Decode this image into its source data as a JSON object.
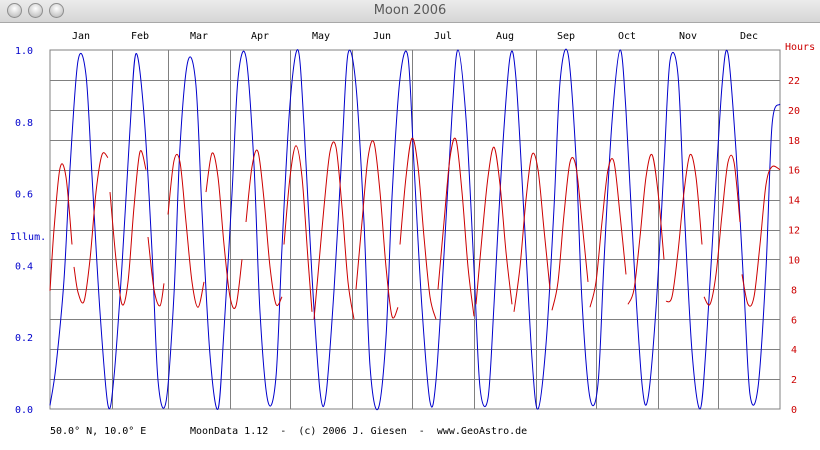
{
  "window": {
    "title": "Moon 2006"
  },
  "footer": {
    "location": "50.0° N, 10.0° E",
    "credit": "MoonData 1.12  -  (c) 2006 J. Giesen  -  www.GeoAstro.de"
  },
  "colors": {
    "grid": "#808080",
    "illumination": "#0000cc",
    "hours": "#cc0000"
  },
  "chart_data": {
    "type": "line",
    "title": "",
    "x_axis": {
      "categories": [
        "Jan",
        "Feb",
        "Mar",
        "Apr",
        "May",
        "Jun",
        "Jul",
        "Aug",
        "Sep",
        "Oct",
        "Nov",
        "Dec"
      ],
      "position": "top",
      "range_days": [
        0,
        365
      ]
    },
    "y_axis_left": {
      "label": "Illum.",
      "range": [
        0,
        1
      ],
      "ticks": [
        "0.0",
        "0.2",
        "0.4",
        "0.6",
        "0.8",
        "1.0"
      ]
    },
    "y_axis_right": {
      "label": "Hours",
      "range": [
        0,
        24
      ],
      "ticks": [
        "0",
        "2",
        "4",
        "6",
        "8",
        "10",
        "12",
        "14",
        "16",
        "18",
        "20",
        "22"
      ]
    },
    "grid": true,
    "series": [
      {
        "axis": "left",
        "x": [
          0,
          3,
          7,
          10,
          14,
          18,
          21,
          25,
          29,
          32,
          36,
          40,
          43,
          47,
          51,
          54,
          58,
          62,
          65,
          69,
          73,
          76,
          80,
          84,
          87,
          91,
          94,
          98,
          102,
          105,
          109,
          113,
          116,
          120,
          124,
          127,
          131,
          135,
          138,
          142,
          146,
          149,
          153,
          157,
          160,
          164,
          168,
          171,
          175,
          179,
          182,
          186,
          190,
          193,
          197,
          201,
          204,
          208,
          212,
          215,
          219,
          222,
          226,
          230,
          233,
          237,
          241,
          244,
          248,
          252,
          255,
          259,
          263,
          266,
          270,
          274,
          277,
          281,
          285,
          288,
          292,
          296,
          299,
          303,
          307,
          310,
          314,
          317,
          321,
          325,
          328,
          332,
          336,
          339,
          343,
          347,
          350,
          354,
          358,
          361,
          365
        ],
        "y": [
          0.01,
          0.12,
          0.36,
          0.67,
          0.97,
          0.93,
          0.65,
          0.27,
          0.01,
          0.09,
          0.4,
          0.78,
          0.99,
          0.82,
          0.44,
          0.08,
          0.02,
          0.32,
          0.73,
          0.97,
          0.9,
          0.55,
          0.15,
          0.0,
          0.22,
          0.6,
          0.92,
          0.98,
          0.68,
          0.27,
          0.02,
          0.09,
          0.45,
          0.85,
          1.0,
          0.79,
          0.37,
          0.05,
          0.04,
          0.33,
          0.72,
          0.99,
          0.9,
          0.52,
          0.12,
          0.0,
          0.2,
          0.59,
          0.92,
          0.98,
          0.68,
          0.28,
          0.02,
          0.08,
          0.43,
          0.82,
          1.0,
          0.81,
          0.39,
          0.06,
          0.03,
          0.29,
          0.7,
          0.98,
          0.92,
          0.54,
          0.14,
          0.0,
          0.18,
          0.56,
          0.91,
          0.99,
          0.7,
          0.3,
          0.03,
          0.07,
          0.41,
          0.8,
          1.0,
          0.83,
          0.41,
          0.07,
          0.03,
          0.28,
          0.68,
          0.97,
          0.93,
          0.57,
          0.16,
          0.0,
          0.17,
          0.54,
          0.9,
          0.99,
          0.72,
          0.33,
          0.04,
          0.06,
          0.39,
          0.79,
          0.85
        ]
      },
      {
        "axis": "right",
        "segments": [
          {
            "x": [
              0,
              2,
              5,
              8,
              11
            ],
            "y": [
              7.9,
              12.0,
              16.1,
              15.5,
              11.0
            ]
          },
          {
            "x": [
              12,
              14,
              17,
              20,
              23,
              26,
              29
            ],
            "y": [
              9.5,
              7.8,
              7.2,
              10.0,
              14.5,
              17.0,
              16.8
            ]
          },
          {
            "x": [
              30,
              33,
              36,
              39,
              42,
              45,
              48
            ],
            "y": [
              14.5,
              10.0,
              7.0,
              8.5,
              13.5,
              17.2,
              16.0
            ]
          },
          {
            "x": [
              49,
              52,
              55,
              57
            ],
            "y": [
              11.5,
              8.0,
              6.9,
              8.4
            ]
          },
          {
            "x": [
              59,
              62,
              65,
              68,
              71,
              74,
              77
            ],
            "y": [
              13.0,
              16.6,
              16.5,
              12.5,
              8.5,
              6.8,
              8.5
            ]
          },
          {
            "x": [
              78,
              81,
              84,
              87,
              90,
              93,
              96
            ],
            "y": [
              14.5,
              17.1,
              15.5,
              11.0,
              7.5,
              6.9,
              10.0
            ]
          },
          {
            "x": [
              98,
              101,
              104,
              107,
              110,
              113,
              116
            ],
            "y": [
              12.5,
              16.2,
              17.2,
              14.0,
              9.5,
              7.0,
              7.5
            ]
          },
          {
            "x": [
              117,
              120,
              123,
              126,
              129,
              131
            ],
            "y": [
              11.0,
              15.5,
              17.6,
              15.5,
              10.0,
              6.5
            ]
          },
          {
            "x": [
              132,
              134,
              137,
              140,
              143,
              146,
              149,
              152
            ],
            "y": [
              6.0,
              9.0,
              13.5,
              17.2,
              17.5,
              13.5,
              8.5,
              6.0
            ]
          },
          {
            "x": [
              153,
              156,
              159,
              162,
              165,
              168,
              171,
              174
            ],
            "y": [
              8.0,
              12.5,
              16.8,
              17.8,
              14.5,
              9.5,
              6.2,
              6.8
            ]
          },
          {
            "x": [
              175,
              178,
              181,
              184,
              187,
              190,
              193
            ],
            "y": [
              11.0,
              15.5,
              18.1,
              16.2,
              11.5,
              7.5,
              6.0
            ]
          },
          {
            "x": [
              194,
              197,
              200,
              203,
              206,
              209,
              212
            ],
            "y": [
              8.0,
              12.5,
              16.8,
              18.0,
              14.5,
              9.5,
              6.2
            ]
          },
          {
            "x": [
              213,
              216,
              219,
              222,
              225,
              228,
              231
            ],
            "y": [
              7.0,
              11.5,
              15.5,
              17.5,
              15.0,
              10.5,
              7.0
            ]
          },
          {
            "x": [
              232,
              235,
              238,
              241,
              244,
              247,
              250
            ],
            "y": [
              6.5,
              9.5,
              14.0,
              17.0,
              16.0,
              12.0,
              8.0
            ]
          },
          {
            "x": [
              251,
              254,
              257,
              260,
              263,
              266,
              269
            ],
            "y": [
              6.6,
              8.5,
              13.0,
              16.5,
              16.2,
              12.5,
              8.5
            ]
          },
          {
            "x": [
              270,
              273,
              276,
              279,
              282,
              285,
              288
            ],
            "y": [
              6.8,
              8.5,
              12.5,
              16.0,
              16.5,
              13.0,
              9.0
            ]
          },
          {
            "x": [
              289,
              292,
              295,
              298,
              301,
              304,
              307
            ],
            "y": [
              7.0,
              8.0,
              11.5,
              15.5,
              17.0,
              14.5,
              10.0
            ]
          },
          {
            "x": [
              308,
              311,
              314,
              317,
              320,
              323,
              326
            ],
            "y": [
              7.2,
              7.5,
              10.5,
              14.5,
              17.0,
              15.5,
              11.0
            ]
          },
          {
            "x": [
              327,
              330,
              333,
              336,
              339,
              342,
              345
            ],
            "y": [
              7.5,
              7.0,
              9.0,
              13.0,
              16.5,
              16.5,
              12.5
            ]
          },
          {
            "x": [
              346,
              349,
              352,
              355,
              358,
              361,
              365
            ],
            "y": [
              9.0,
              7.0,
              7.5,
              11.0,
              15.0,
              16.2,
              16.0
            ]
          }
        ]
      }
    ]
  }
}
